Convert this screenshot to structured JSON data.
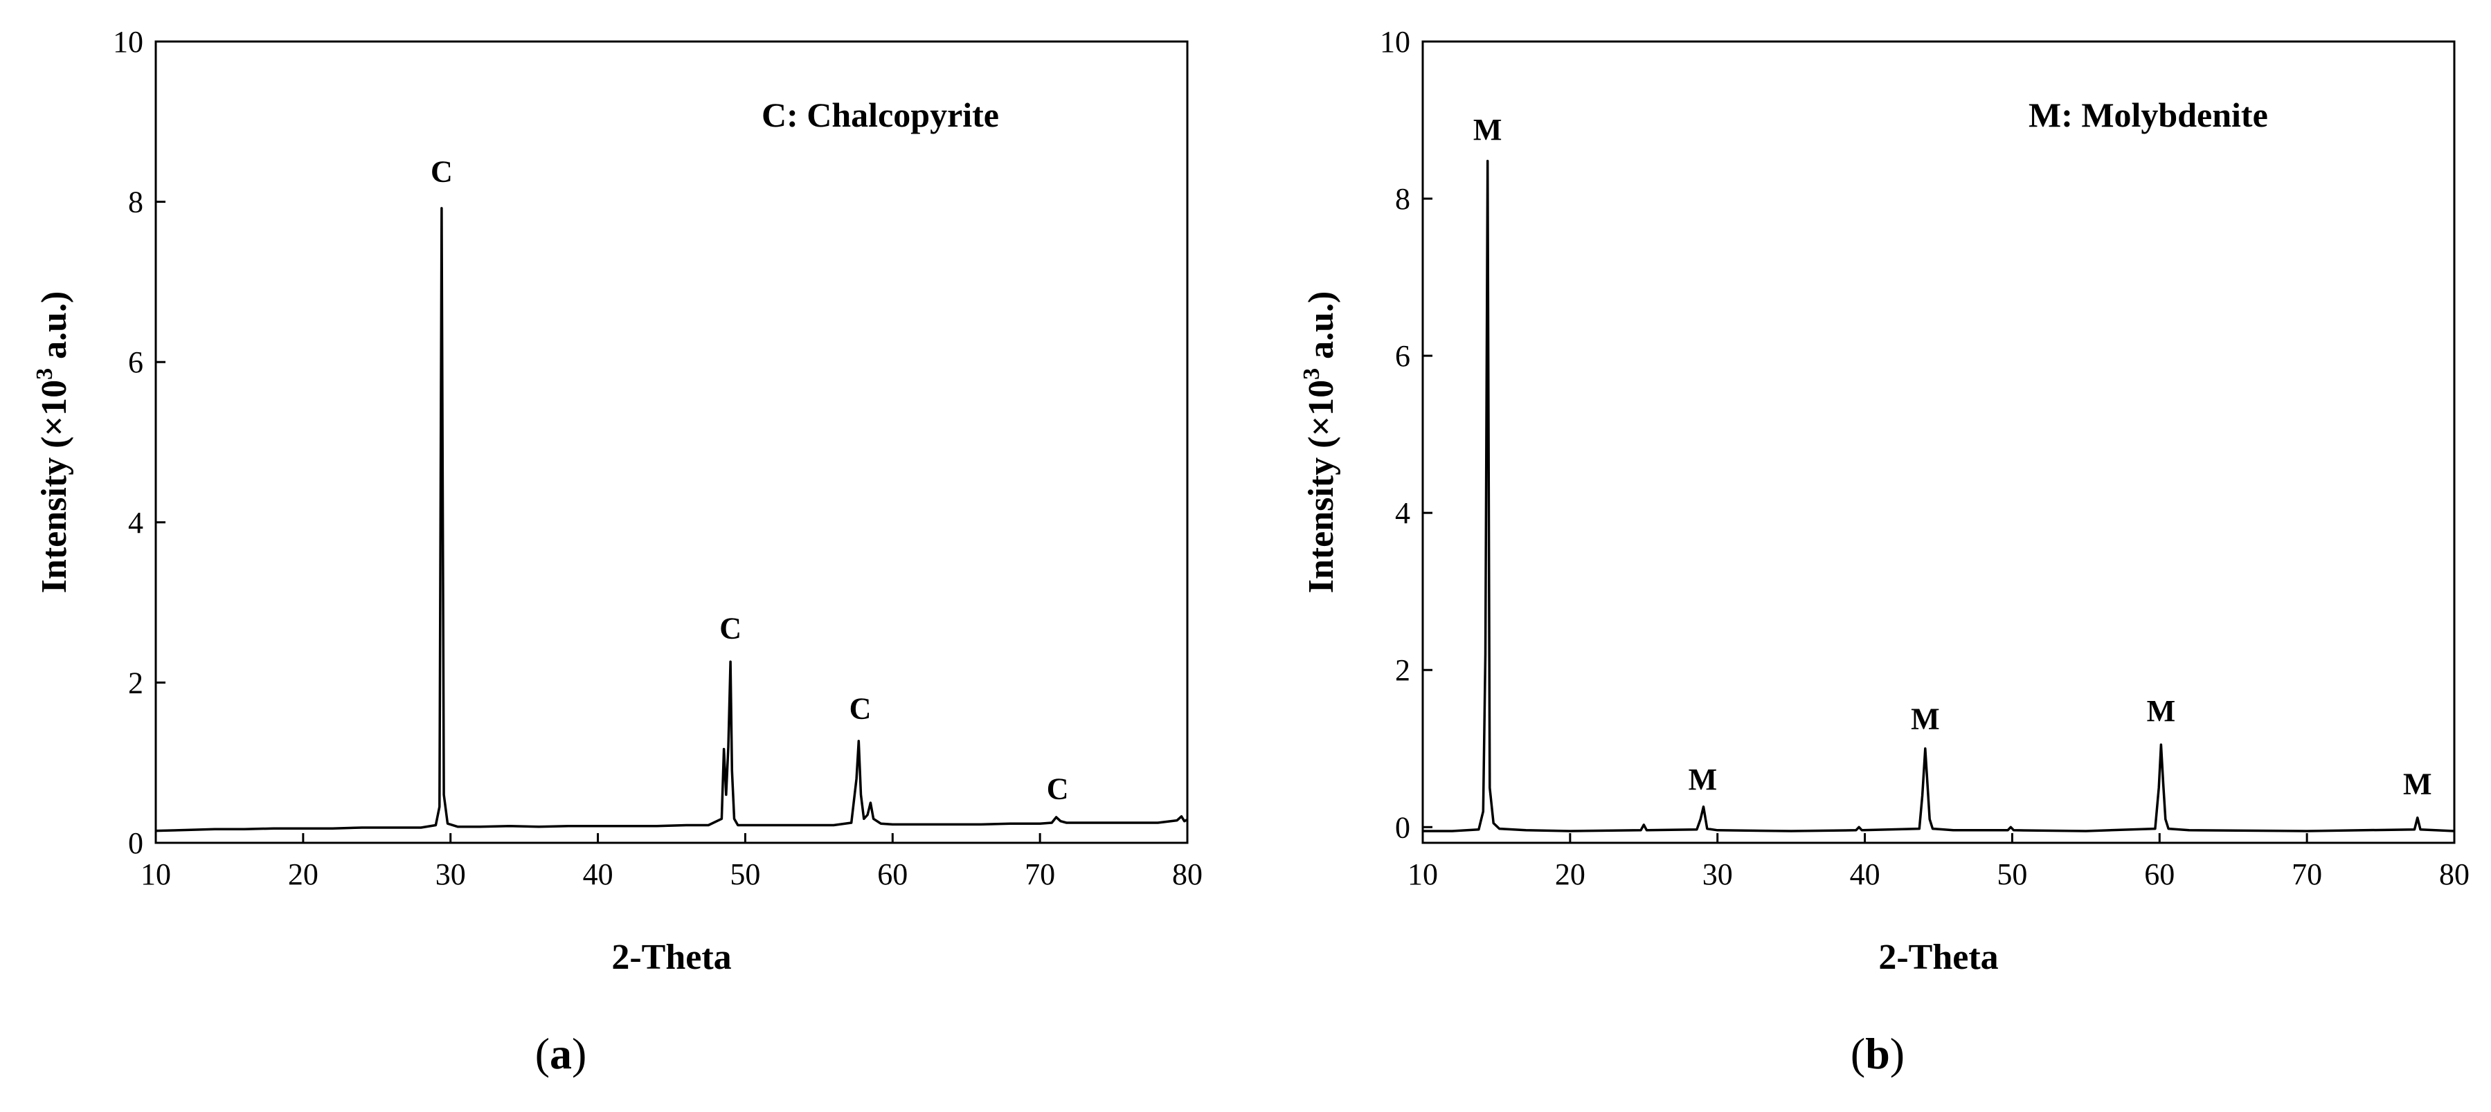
{
  "chart_data": [
    {
      "type": "line",
      "panel_label": "a",
      "xlabel": "2-Theta",
      "ylabel": "Intensity (×10",
      "ylabel_sup": "3",
      "ylabel_tail": " a.u.)",
      "legend_text": "C: Chalcopyrite",
      "xlim": [
        10,
        80
      ],
      "ylim": [
        0,
        10
      ],
      "xticks": [
        10,
        20,
        30,
        40,
        50,
        60,
        70,
        80
      ],
      "yticks": [
        0,
        2,
        4,
        6,
        8,
        10
      ],
      "grid": false,
      "series": [
        {
          "x": [
            10,
            12,
            14,
            16,
            18,
            20,
            22,
            24,
            26,
            28,
            29.0,
            29.25,
            29.4,
            29.55,
            29.8,
            30.5,
            32,
            34,
            36,
            38,
            40,
            42,
            44,
            46,
            47.5,
            48.4,
            48.55,
            48.7,
            48.85,
            49.0,
            49.1,
            49.25,
            49.5,
            50.5,
            52,
            54,
            56,
            57.2,
            57.55,
            57.7,
            57.85,
            58.05,
            58.3,
            58.5,
            58.7,
            59.2,
            60,
            62,
            64,
            66,
            68,
            70,
            70.8,
            71.1,
            71.4,
            71.8,
            72.5,
            74,
            76,
            78,
            79.3,
            79.6,
            79.8,
            80
          ],
          "y": [
            0.15,
            0.16,
            0.17,
            0.17,
            0.18,
            0.18,
            0.18,
            0.19,
            0.19,
            0.19,
            0.22,
            0.45,
            7.92,
            0.6,
            0.24,
            0.2,
            0.2,
            0.21,
            0.2,
            0.21,
            0.21,
            0.21,
            0.21,
            0.22,
            0.22,
            0.3,
            1.17,
            0.6,
            1.2,
            2.26,
            0.9,
            0.3,
            0.22,
            0.22,
            0.22,
            0.22,
            0.22,
            0.25,
            0.8,
            1.27,
            0.6,
            0.3,
            0.35,
            0.5,
            0.3,
            0.24,
            0.23,
            0.23,
            0.23,
            0.23,
            0.24,
            0.24,
            0.25,
            0.32,
            0.27,
            0.25,
            0.25,
            0.25,
            0.25,
            0.25,
            0.28,
            0.33,
            0.27,
            0.29
          ]
        }
      ],
      "annotations": [
        {
          "text": "C",
          "x": 29.4,
          "y": 8.25
        },
        {
          "text": "C",
          "x": 49.0,
          "y": 2.55
        },
        {
          "text": "C",
          "x": 57.8,
          "y": 1.55
        },
        {
          "text": "C",
          "x": 71.2,
          "y": 0.55
        }
      ]
    },
    {
      "type": "line",
      "panel_label": "b",
      "xlabel": "2-Theta",
      "ylabel": "Intensity (×10",
      "ylabel_sup": "3",
      "ylabel_tail": " a.u.)",
      "legend_text": "M: Molybdenite",
      "xlim": [
        10,
        80
      ],
      "ylim": [
        -0.2,
        10
      ],
      "xticks": [
        10,
        20,
        30,
        40,
        50,
        60,
        70,
        80
      ],
      "yticks": [
        0,
        2,
        4,
        6,
        8,
        10
      ],
      "grid": false,
      "series": [
        {
          "x": [
            10,
            12,
            13.8,
            14.1,
            14.25,
            14.4,
            14.55,
            14.8,
            15.2,
            17,
            20,
            24.8,
            25.0,
            25.2,
            28.6,
            28.85,
            29.05,
            29.3,
            30,
            35,
            39.4,
            39.6,
            39.8,
            43.7,
            43.9,
            44.1,
            44.25,
            44.4,
            44.6,
            46,
            49.7,
            49.9,
            50.1,
            55,
            59.7,
            59.95,
            60.1,
            60.25,
            60.4,
            60.6,
            62,
            70,
            77.3,
            77.5,
            77.7,
            80
          ],
          "y": [
            -0.05,
            -0.05,
            -0.03,
            0.2,
            2.2,
            8.48,
            0.5,
            0.05,
            -0.02,
            -0.04,
            -0.05,
            -0.04,
            0.03,
            -0.04,
            -0.03,
            0.1,
            0.26,
            -0.02,
            -0.04,
            -0.05,
            -0.04,
            0.0,
            -0.04,
            -0.02,
            0.4,
            1.0,
            0.55,
            0.1,
            -0.02,
            -0.04,
            -0.04,
            0.0,
            -0.04,
            -0.05,
            -0.02,
            0.5,
            1.05,
            0.55,
            0.1,
            -0.02,
            -0.04,
            -0.05,
            -0.03,
            0.12,
            -0.03,
            -0.05
          ]
        }
      ],
      "annotations": [
        {
          "text": "M",
          "x": 14.4,
          "y": 8.75
        },
        {
          "text": "M",
          "x": 29.0,
          "y": 0.48
        },
        {
          "text": "M",
          "x": 44.1,
          "y": 1.25
        },
        {
          "text": "M",
          "x": 60.1,
          "y": 1.35
        },
        {
          "text": "M",
          "x": 77.5,
          "y": 0.42
        }
      ]
    }
  ]
}
